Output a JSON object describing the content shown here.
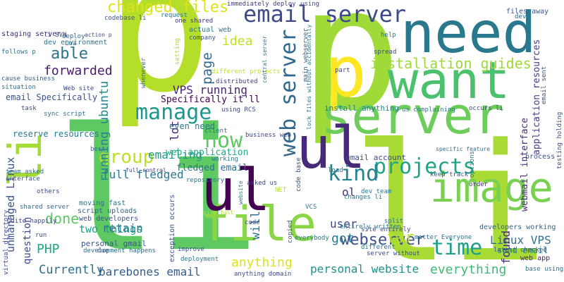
{
  "words": [
    {
      "text": "p",
      "color": "#b5de2b"
    },
    {
      "text": "p",
      "color": "#a0da39"
    },
    {
      "text": "li",
      "color": "#5ec962"
    },
    {
      "text": "li",
      "color": "#a8db34"
    },
    {
      "text": "server",
      "color": "#6ccd5a"
    },
    {
      "text": "need",
      "color": "#2a788e"
    },
    {
      "text": "want",
      "color": "#4ac16d"
    },
    {
      "text": "image",
      "color": "#7ad151"
    },
    {
      "text": "file",
      "color": "#8bd646"
    },
    {
      "text": "p",
      "color": "#fde725"
    },
    {
      "text": "ul",
      "color": "#440154"
    },
    {
      "text": "ul",
      "color": "#482878"
    },
    {
      "text": "li",
      "color": "#a5db36"
    },
    {
      "text": "email server",
      "color": "#3e4a89"
    },
    {
      "text": "web server",
      "color": "#31688e"
    },
    {
      "text": "projects",
      "color": "#20a486"
    },
    {
      "text": "kind",
      "color": "#26828e"
    },
    {
      "text": "time",
      "color": "#1f9e89"
    },
    {
      "text": "manage",
      "color": "#1f968b"
    },
    {
      "text": "changed files",
      "color": "#dde318"
    },
    {
      "text": "group",
      "color": "#bddf26"
    },
    {
      "text": "now",
      "color": "#5ec962"
    },
    {
      "text": "installation guides",
      "color": "#9dd93b"
    },
    {
      "text": "webserver",
      "color": "#3b528b"
    },
    {
      "text": "forwarded",
      "color": "#481a6c"
    },
    {
      "text": "running ubuntu",
      "color": "#25848e"
    },
    {
      "text": "Linux VPS",
      "color": "#2c728e"
    },
    {
      "text": "application resources",
      "color": "#433e85"
    },
    {
      "text": "webmail interface",
      "color": "#472d7b"
    },
    {
      "text": "barebones email",
      "color": "#365c8d"
    },
    {
      "text": "personal website",
      "color": "#21918c"
    },
    {
      "text": "everything",
      "color": "#3dbc74"
    },
    {
      "text": "Currently",
      "color": "#2d708e"
    },
    {
      "text": "full fledged",
      "color": "#2a788e"
    },
    {
      "text": "retain",
      "color": "#2e6e8e"
    },
    {
      "text": "two things",
      "color": "#1f9e89"
    },
    {
      "text": "VPS running",
      "color": "#481f70"
    },
    {
      "text": "unmanaged Linux",
      "color": "#3b528b"
    },
    {
      "text": "question",
      "color": "#3e4989"
    },
    {
      "text": "PHP",
      "color": "#21a585"
    },
    {
      "text": "done",
      "color": "#5ec962"
    },
    {
      "text": "able",
      "color": "#2c728e"
    },
    {
      "text": "page",
      "color": "#31688e"
    },
    {
      "text": "idea",
      "color": "#c2df23"
    },
    {
      "text": "found",
      "color": "#482576"
    },
    {
      "text": "far",
      "color": "#b8de29"
    },
    {
      "text": "got",
      "color": "#2a788e"
    },
    {
      "text": "anything",
      "color": "#dde318"
    },
    {
      "text": "will",
      "color": "#2c728e"
    },
    {
      "text": "user",
      "color": "#3e4989"
    },
    {
      "text": "ol",
      "color": "#472c7a"
    },
    {
      "text": "emailing",
      "color": "#1f968b"
    },
    {
      "text": "lot",
      "color": "#482576"
    },
    {
      "text": "fledged email",
      "color": "#2d708e"
    },
    {
      "text": "web application",
      "color": "#22a884"
    },
    {
      "text": "Specifically it'll",
      "color": "#440154"
    },
    {
      "text": "even need",
      "color": "#2a788e"
    },
    {
      "text": "reserve resources",
      "color": "#2a788e"
    },
    {
      "text": "email Specifically",
      "color": "#3b528b"
    },
    {
      "text": "install anything",
      "color": "#26828e"
    },
    {
      "text": "send email",
      "color": "#24868e"
    },
    {
      "text": "gmail account",
      "color": "#3e4989"
    },
    {
      "text": "dev environment",
      "color": "#2c728e"
    },
    {
      "text": "staging server",
      "color": "#482878"
    },
    {
      "text": "actual web",
      "color": "#2a788e"
    },
    {
      "text": "one shared",
      "color": "#443983"
    },
    {
      "text": "immediately deploy",
      "color": "#443a83"
    },
    {
      "text": "personal gmail",
      "color": "#39568c"
    },
    {
      "text": "web developers",
      "color": "#3b528b"
    },
    {
      "text": "script uploads",
      "color": "#33638d"
    },
    {
      "text": "moving fast",
      "color": "#2c728e"
    },
    {
      "text": "developers working",
      "color": "#33638d"
    },
    {
      "text": "business web",
      "color": "#3e4989"
    },
    {
      "text": "site entirely",
      "color": "#3e4989"
    },
    {
      "text": "latest checked",
      "color": "#38598c"
    },
    {
      "text": "base using",
      "color": "#2d708e"
    },
    {
      "text": "web app",
      "color": "#481a6c"
    },
    {
      "text": "files away",
      "color": "#3b528b"
    },
    {
      "text": "dev team",
      "color": "#2a788e"
    },
    {
      "text": "keep track",
      "color": "#38598c"
    },
    {
      "text": "sync script",
      "color": "#2d708e"
    },
    {
      "text": "team asked",
      "color": "#2c728e"
    },
    {
      "text": "shared server",
      "color": "#31688e"
    },
    {
      "text": "Quite happily",
      "color": "#3e4989"
    },
    {
      "text": "development happens",
      "color": "#2e6e8e"
    },
    {
      "text": "exception occurs",
      "color": "#3b528b"
    },
    {
      "text": "deployment",
      "color": "#2a788e"
    },
    {
      "text": "VCS",
      "color": "#2a788e"
    },
    {
      "text": "process",
      "color": "#3b528b"
    },
    {
      "text": "order",
      "color": "#472c7a"
    },
    {
      "text": "split",
      "color": "#2c728e"
    },
    {
      "text": "code",
      "color": "#3b528b"
    },
    {
      "text": "load",
      "color": "#2c728e"
    },
    {
      "text": "spread",
      "color": "#3e4989"
    },
    {
      "text": "help",
      "color": "#2a788e"
    },
    {
      "text": "dev",
      "color": "#31688e"
    },
    {
      "text": "using",
      "color": "#3e4989"
    },
    {
      "text": "deploy",
      "color": "#33638d"
    },
    {
      "text": "Lua",
      "color": "#2c728e"
    },
    {
      "text": "distributed",
      "color": "#443983"
    },
    {
      "text": "different projects",
      "color": "#bddf26"
    },
    {
      "text": "codebase li",
      "color": "#3b528b"
    },
    {
      "text": "request",
      "color": "#2a788e"
    },
    {
      "text": "li SVN",
      "color": "#3e4989"
    },
    {
      "text": "follows p",
      "color": "#2c728e"
    },
    {
      "text": "cause business",
      "color": "#38598c"
    },
    {
      "text": "situation",
      "color": "#2c728e"
    },
    {
      "text": "task",
      "color": "#3e4989"
    },
    {
      "text": "best",
      "color": "#2e6e8e"
    },
    {
      "text": "interface",
      "color": "#38598c"
    },
    {
      "text": "others",
      "color": "#3e4989"
    },
    {
      "text": "run",
      "color": "#3e4989"
    },
    {
      "text": "company",
      "color": "#3b528b"
    },
    {
      "text": "whenever",
      "color": "#31688e"
    },
    {
      "text": "working",
      "color": "#2a788e"
    },
    {
      "text": "client",
      "color": "#2c728e"
    },
    {
      "text": "improve",
      "color": "#3b528b"
    },
    {
      "text": "due",
      "color": "#3e4989"
    },
    {
      "text": "part",
      "color": "#3e4989"
    },
    {
      "text": "central server",
      "color": "#2a788e"
    },
    {
      "text": "main webserver",
      "color": "#31688e"
    },
    {
      "text": "using RCS",
      "color": "#3e4989"
    },
    {
      "text": "email sent",
      "color": "#3b528b"
    },
    {
      "text": "occurs li",
      "color": "#3e4989"
    },
    {
      "text": "repository",
      "color": "#2a788e"
    },
    {
      "text": "asked us",
      "color": "#3e4989"
    },
    {
      "text": "NET",
      "color": "#b5de2b"
    },
    {
      "text": "changes li",
      "color": "#2c728e"
    },
    {
      "text": "code base",
      "color": "#38598c"
    },
    {
      "text": "matter Everyone",
      "color": "#2d708e"
    },
    {
      "text": "entirely written",
      "color": "#2a788e"
    },
    {
      "text": "server without",
      "color": "#3e4989"
    },
    {
      "text": "different",
      "color": "#2c728e"
    },
    {
      "text": "copied",
      "color": "#3b528b"
    },
    {
      "text": "everybody",
      "color": "#2a788e"
    },
    {
      "text": "anything domain",
      "color": "#3e4989"
    },
    {
      "text": "virtual directory",
      "color": "#3e4989"
    },
    {
      "text": "setting",
      "color": "#b5de2b"
    },
    {
      "text": "website",
      "color": "#2a788e"
    },
    {
      "text": "Web site",
      "color": "#3e4989"
    },
    {
      "text": "testing holding",
      "color": "#3b528b"
    },
    {
      "text": "options",
      "color": "#2a788e"
    },
    {
      "text": "specific feature",
      "color": "#2c728e"
    },
    {
      "text": "full control",
      "color": "#3e4989"
    },
    {
      "text": "give full",
      "color": "#b5de2b"
    },
    {
      "text": "us complaining",
      "color": "#2a788e"
    },
    {
      "text": "action p",
      "color": "#3e4989"
    },
    {
      "text": "lock files without accidentally",
      "color": "#2a788e"
    }
  ]
}
